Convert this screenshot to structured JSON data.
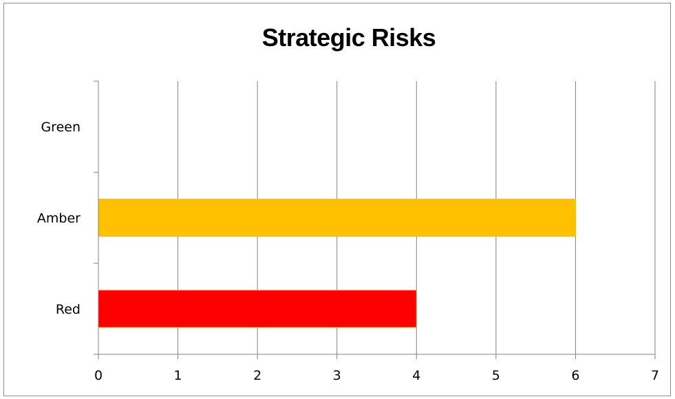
{
  "chart_data": {
    "type": "bar",
    "orientation": "horizontal",
    "title": "Strategic Risks",
    "xlabel": "",
    "ylabel": "",
    "categories": [
      "Green",
      "Amber",
      "Red"
    ],
    "values": [
      0,
      6,
      4
    ],
    "bar_colors": [
      "#00b050",
      "#ffc000",
      "#ff0000"
    ],
    "xlim": [
      0,
      7
    ],
    "x_ticks": [
      0,
      1,
      2,
      3,
      4,
      5,
      6,
      7
    ],
    "grid": true,
    "legend": "none"
  }
}
